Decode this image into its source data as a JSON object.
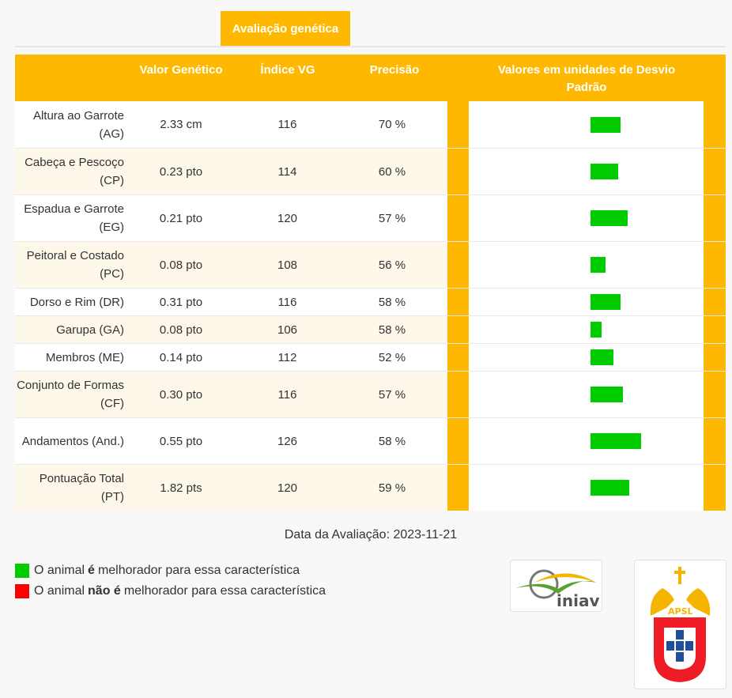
{
  "tab": {
    "label": "Avaliação genética"
  },
  "header": {
    "valor": "Valor Genético",
    "indice": "Índice VG",
    "precisao": "Precisão",
    "desvio": "Valores em unidades de Desvio Padrão"
  },
  "rows": [
    {
      "label": "Altura ao Garrote (AG)",
      "valor": "2.33 cm",
      "indice": "116",
      "precisao": "70 %",
      "sd": 1.6
    },
    {
      "label": "Cabeça e Pescoço (CP)",
      "valor": "0.23 pto",
      "indice": "114",
      "precisao": "60 %",
      "sd": 1.45
    },
    {
      "label": "Espadua e Garrote (EG)",
      "valor": "0.21 pto",
      "indice": "120",
      "precisao": "57 %",
      "sd": 1.95
    },
    {
      "label": "Peitoral e Costado (PC)",
      "valor": "0.08 pto",
      "indice": "108",
      "precisao": "56 %",
      "sd": 0.8
    },
    {
      "label": "Dorso e Rim (DR)",
      "valor": "0.31 pto",
      "indice": "116",
      "precisao": "58 %",
      "sd": 1.6
    },
    {
      "label": "Garupa (GA)",
      "valor": "0.08 pto",
      "indice": "106",
      "precisao": "58 %",
      "sd": 0.6
    },
    {
      "label": "Membros (ME)",
      "valor": "0.14 pto",
      "indice": "112",
      "precisao": "52 %",
      "sd": 1.2
    },
    {
      "label": "Conjunto de Formas (CF)",
      "valor": "0.30 pto",
      "indice": "116",
      "precisao": "57 %",
      "sd": 1.7
    },
    {
      "label": "Andamentos (And.)",
      "valor": "0.55 pto",
      "indice": "126",
      "precisao": "58 %",
      "sd": 2.65
    },
    {
      "label": "Pontuação Total (PT)",
      "valor": "1.82 pts",
      "indice": "120",
      "precisao": "59 %",
      "sd": 2.05
    }
  ],
  "date": "Data da Avaliação: 2023-11-21",
  "legend": {
    "pos": {
      "pre": "O animal ",
      "bold": "é",
      "post": " melhorador para essa característica",
      "color": "#00cc00"
    },
    "neg": {
      "pre": "O animal ",
      "bold": "não é",
      "post": " melhorador para essa característica",
      "color": "#ff0000"
    }
  },
  "logos": {
    "iniav": "iniav",
    "apsl": "APSL"
  },
  "colors": {
    "accent": "#ffb800",
    "bar": "#00cc00",
    "alt_row": "#fdf8ea"
  }
}
